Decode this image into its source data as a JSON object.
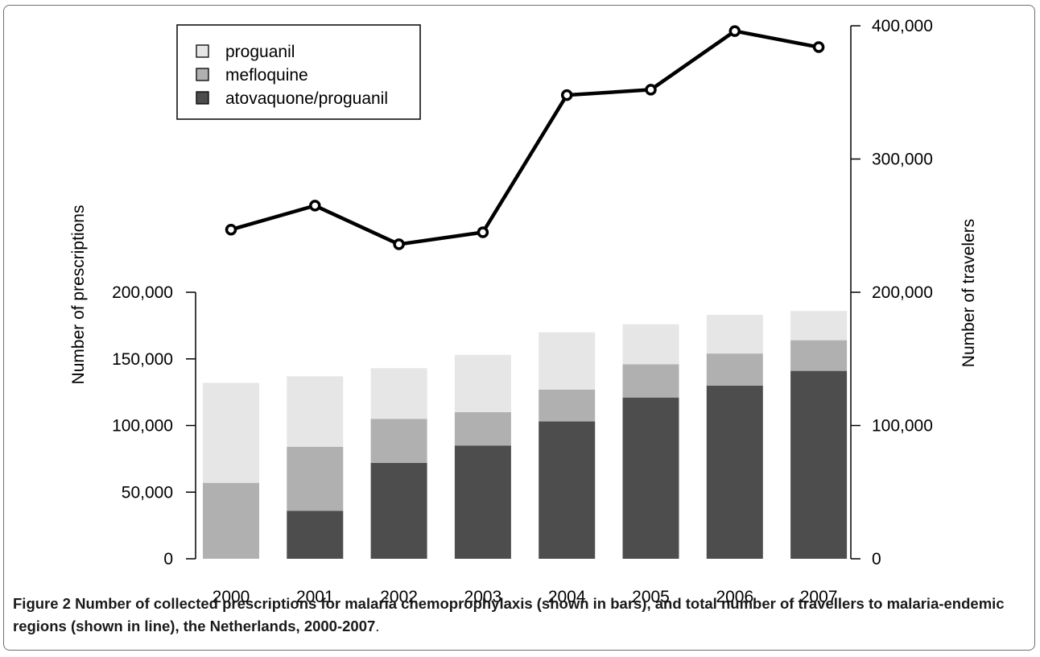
{
  "chart_data": {
    "type": "bar",
    "categories": [
      "2000",
      "2001",
      "2002",
      "2003",
      "2004",
      "2005",
      "2006",
      "2007"
    ],
    "series": [
      {
        "name": "atovaquone/proguanil",
        "values": [
          0,
          36000,
          72000,
          85000,
          103000,
          121000,
          130000,
          141000
        ],
        "color": "#4d4d4d"
      },
      {
        "name": "mefloquine",
        "values": [
          57000,
          48000,
          33000,
          25000,
          24000,
          25000,
          24000,
          23000
        ],
        "color": "#b0b0b0"
      },
      {
        "name": "proguanil",
        "values": [
          75000,
          53000,
          38000,
          43000,
          43000,
          30000,
          29000,
          22000
        ],
        "color": "#e6e6e6"
      }
    ],
    "line_series": {
      "name": "Number of travelers",
      "values": [
        247000,
        265000,
        236000,
        245000,
        348000,
        352000,
        396000,
        384000
      ]
    },
    "ylabel": "Number of prescriptions",
    "ylabel_right": "Number of travelers",
    "ylim": [
      0,
      200000
    ],
    "ylim_right": [
      0,
      400000
    ],
    "yticks_left": [
      "0",
      "50,000",
      "100,000",
      "150,000",
      "200,000"
    ],
    "yticks_right": [
      "0",
      "100,000",
      "200,000",
      "300,000",
      "400,000"
    ],
    "legend_order": [
      "proguanil",
      "mefloquine",
      "atovaquone/proguanil"
    ],
    "legend_position": "top-left",
    "grid": false
  },
  "caption": {
    "lead": "Figure 2",
    "text": " Number of collected prescriptions for malaria chemoprophylaxis (shown in bars), and total number of travellers to malaria-endemic regions (shown in line), the Netherlands, 2000-2007",
    "tail": "."
  }
}
